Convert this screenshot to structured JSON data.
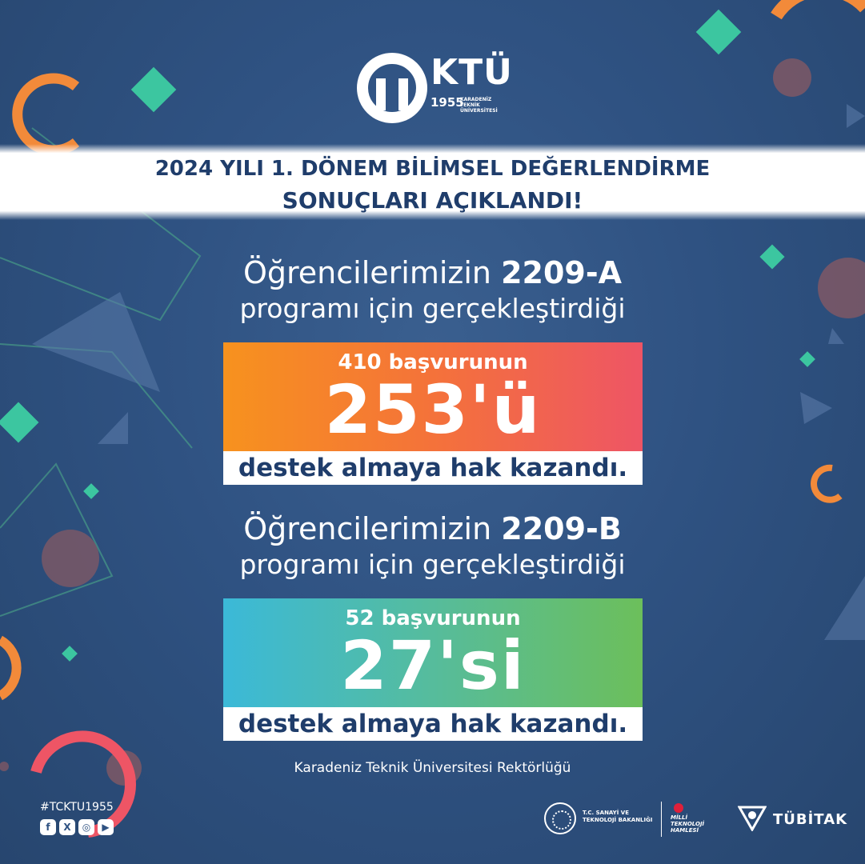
{
  "logo": {
    "name": "KTÜ",
    "year": "1955",
    "subtitle_line1": "KARADENİZ",
    "subtitle_line2": "TEKNİK ÜNİVERSİTESİ"
  },
  "header": {
    "line1": "2024 YILI 1. DÖNEM BİLİMSEL DEĞERLENDİRME",
    "line2": "SONUÇLARI AÇIKLANDI!"
  },
  "sections": [
    {
      "intro_prefix": "Öğrencilerimizin",
      "program": "2209-A",
      "intro_line2": "programı için gerçekleştirdiği",
      "applications": "410 başvurunun",
      "accepted": "253'ü",
      "result": "destek almaya hak kazandı."
    },
    {
      "intro_prefix": "Öğrencilerimizin",
      "program": "2209-B",
      "intro_line2": "programı için gerçekleştirdiği",
      "applications": "52 başvurunun",
      "accepted": "27'si",
      "result": "destek almaya hak kazandı."
    }
  ],
  "footer": {
    "note": "Karadeniz Teknik Üniversitesi Rektörlüğü",
    "hashtag": "#TCKTU1955",
    "socials": [
      {
        "icon": "facebook-icon",
        "glyph": "f"
      },
      {
        "icon": "x-icon",
        "glyph": "X"
      },
      {
        "icon": "instagram-icon",
        "glyph": "◎"
      },
      {
        "icon": "youtube-icon",
        "glyph": "▶"
      }
    ],
    "partners": {
      "ministry": "T.C. SANAYİ VE TEKNOLOJİ BAKANLIĞI",
      "milli": "MİLLİ TEKNOLOJİ HAMLESİ",
      "tubitak": "TÜBİTAK"
    }
  },
  "colors": {
    "background": "#2f5282",
    "navy_text": "#1f3d6b",
    "orange": "#f7921e",
    "coral": "#ee5565",
    "teal": "#3bb9d8",
    "green": "#6cbf5b",
    "mint": "#3cc6a0"
  }
}
